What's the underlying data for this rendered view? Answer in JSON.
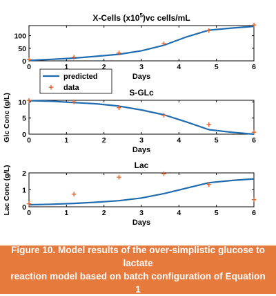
{
  "colors": {
    "predicted": "#1f6bb0",
    "data": "#e3642b",
    "caption_bg": "#e57a3c",
    "axis": "#000000"
  },
  "legend": {
    "predicted": "predicted",
    "data": "data",
    "placement": "between top and middle panels"
  },
  "caption": {
    "line1": "Figure 10. Model results of the over-simplistic glucose to lactate",
    "line2": "reaction model based on batch configuration of Equation 1"
  },
  "chart_data": [
    {
      "type": "line",
      "title_main": "X-Cells (x10",
      "title_sup": "5",
      "title_rest": ")vc cells/mL",
      "xlabel": "Days",
      "ylabel": "",
      "xlim": [
        0,
        6
      ],
      "ylim": [
        0,
        140
      ],
      "xticks": [
        "0",
        "1",
        "2",
        "3",
        "4",
        "5",
        "6"
      ],
      "yticks": [
        0,
        50,
        100
      ],
      "yticklabels": [
        "0",
        "50",
        "100"
      ],
      "series": [
        {
          "name": "predicted",
          "style": "line",
          "x": [
            0,
            0.6,
            1.2,
            1.8,
            2.4,
            3.0,
            3.6,
            4.2,
            4.8,
            5.4,
            6.0
          ],
          "y": [
            2,
            6,
            11,
            18,
            26,
            40,
            62,
            95,
            122,
            130,
            137
          ]
        },
        {
          "name": "data",
          "style": "marker",
          "x": [
            0,
            1.2,
            2.4,
            3.6,
            4.8,
            6.0
          ],
          "y": [
            2,
            12,
            28,
            66,
            118,
            140
          ]
        }
      ]
    },
    {
      "type": "line",
      "title_main": "S-GLc",
      "xlabel": "Days",
      "ylabel": "Glc Conc (g/L)",
      "xlim": [
        0,
        6
      ],
      "ylim": [
        0,
        10.5
      ],
      "xticks": [
        "0",
        "1",
        "2",
        "3",
        "4",
        "5",
        "6"
      ],
      "yticks": [
        0,
        5,
        10
      ],
      "yticklabels": [
        "0",
        "5",
        "10"
      ],
      "series": [
        {
          "name": "predicted",
          "style": "line",
          "x": [
            0,
            0.6,
            1.2,
            1.8,
            2.4,
            3.0,
            3.6,
            4.2,
            4.8,
            5.4,
            6.0
          ],
          "y": [
            10.4,
            10.2,
            9.8,
            9.4,
            8.7,
            7.5,
            6.0,
            3.8,
            1.4,
            0.6,
            0.0
          ]
        },
        {
          "name": "data",
          "style": "marker",
          "x": [
            0,
            1.2,
            2.4,
            3.6,
            4.8,
            6.0
          ],
          "y": [
            10.3,
            9.8,
            8.0,
            5.7,
            2.8,
            0.4
          ]
        }
      ]
    },
    {
      "type": "line",
      "title_main": "Lac",
      "xlabel": "Days",
      "ylabel": "Lac Conc (g/L)",
      "xlim": [
        0,
        6
      ],
      "ylim": [
        0,
        2
      ],
      "xticks": [
        "0",
        "1",
        "2",
        "3",
        "4",
        "5",
        "6"
      ],
      "yticks": [
        0,
        1,
        2
      ],
      "yticklabels": [
        "0",
        "1",
        "2"
      ],
      "series": [
        {
          "name": "predicted",
          "style": "line",
          "x": [
            0,
            0.6,
            1.2,
            1.8,
            2.4,
            3.0,
            3.6,
            4.2,
            4.8,
            5.4,
            6.0
          ],
          "y": [
            0.12,
            0.15,
            0.2,
            0.27,
            0.36,
            0.52,
            0.78,
            1.1,
            1.42,
            1.55,
            1.65
          ]
        },
        {
          "name": "data",
          "style": "marker",
          "x": [
            0,
            1.2,
            2.4,
            3.6,
            4.8,
            6.0
          ],
          "y": [
            0.15,
            0.72,
            1.72,
            1.92,
            1.28,
            0.38
          ]
        }
      ]
    }
  ]
}
